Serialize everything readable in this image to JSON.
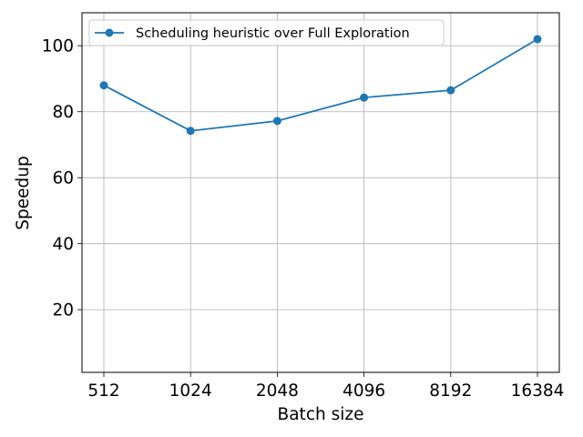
{
  "chart_data": {
    "type": "line",
    "title": "",
    "xlabel": "Batch size",
    "ylabel": "Speedup",
    "categories": [
      "512",
      "1024",
      "2048",
      "4096",
      "8192",
      "16384"
    ],
    "series": [
      {
        "name": "Scheduling heuristic over Full Exploration",
        "values": [
          88,
          74.2,
          77.2,
          84.3,
          86.5,
          102
        ],
        "color": "#1f77b4",
        "marker": "circle"
      }
    ],
    "ylim": [
      1,
      110
    ],
    "yticks": [
      20,
      40,
      60,
      80,
      100
    ],
    "grid": true,
    "legend": "upper-left"
  }
}
